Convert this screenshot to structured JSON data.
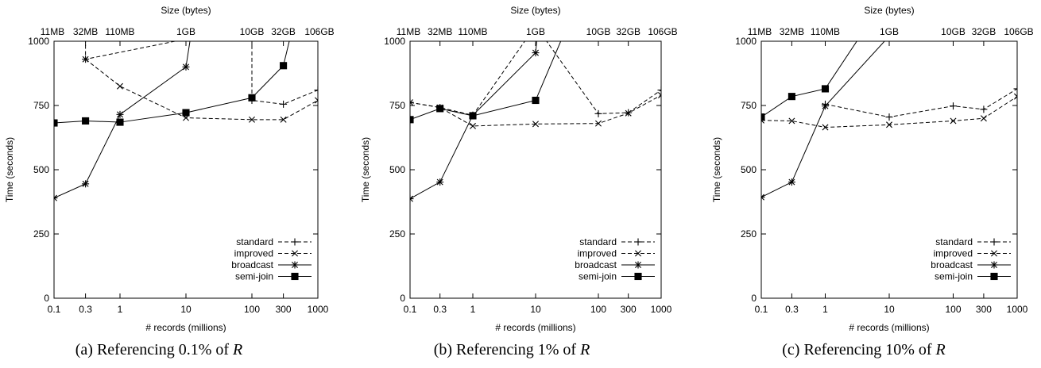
{
  "chart_data": [
    {
      "type": "line",
      "panel": "a",
      "caption": "(a) Referencing 0.1% of ",
      "caption_var": "R",
      "top_axis_title": "Size (bytes)",
      "ylabel": "Time (seconds)",
      "xlabel": "# records (millions)",
      "x_scale": "log",
      "xlim": [
        0.1,
        1000
      ],
      "ylim": [
        0,
        1000
      ],
      "x_ticks": [
        0.1,
        0.3,
        1,
        10,
        100,
        300,
        1000
      ],
      "x_tick_labels": [
        "0.1",
        "0.3",
        "1",
        "10",
        "100",
        "300",
        "1000"
      ],
      "y_ticks": [
        0,
        250,
        500,
        750,
        1000
      ],
      "y_tick_labels": [
        "0",
        "250",
        "500",
        "750",
        "1000"
      ],
      "top_ticks": [
        0.1,
        0.3,
        1,
        10,
        100,
        300,
        1000
      ],
      "top_tick_labels": [
        "11MB",
        "32MB",
        "110MB",
        "1GB",
        "10GB",
        "32GB",
        "106GB"
      ],
      "legend_position": "bottom-right",
      "series": [
        {
          "name": "standard",
          "style": "dashed",
          "marker": "plus",
          "x": [
            0.3,
            0.3,
            100,
            100,
            300,
            1000
          ],
          "y": [
            1060,
            930,
            1060,
            770,
            755,
            810
          ]
        },
        {
          "name": "improved",
          "style": "dashed",
          "marker": "cross",
          "x": [
            0.3,
            1,
            10,
            100,
            300,
            1000
          ],
          "y": [
            930,
            825,
            702,
            695,
            695,
            770
          ]
        },
        {
          "name": "broadcast",
          "style": "solid",
          "marker": "star",
          "x": [
            0.1,
            0.3,
            1,
            10,
            12.5
          ],
          "y": [
            390,
            445,
            715,
            900,
            1060
          ]
        },
        {
          "name": "semi-join",
          "style": "solid",
          "marker": "square",
          "x": [
            0.1,
            0.3,
            1,
            10,
            100,
            300,
            420
          ],
          "y": [
            682,
            690,
            685,
            722,
            780,
            905,
            1060
          ]
        }
      ]
    },
    {
      "type": "line",
      "panel": "b",
      "caption": "(b) Referencing 1% of ",
      "caption_var": "R",
      "top_axis_title": "Size (bytes)",
      "ylabel": "Time (seconds)",
      "xlabel": "# records (millions)",
      "x_scale": "log",
      "xlim": [
        0.1,
        1000
      ],
      "ylim": [
        0,
        1000
      ],
      "x_ticks": [
        0.1,
        0.3,
        1,
        10,
        100,
        300,
        1000
      ],
      "x_tick_labels": [
        "0.1",
        "0.3",
        "1",
        "10",
        "100",
        "300",
        "1000"
      ],
      "y_ticks": [
        0,
        250,
        500,
        750,
        1000
      ],
      "y_tick_labels": [
        "0",
        "250",
        "500",
        "750",
        "1000"
      ],
      "top_ticks": [
        0.1,
        0.3,
        1,
        10,
        100,
        300,
        1000
      ],
      "top_tick_labels": [
        "11MB",
        "32MB",
        "110MB",
        "1GB",
        "10GB",
        "32GB",
        "106GB"
      ],
      "legend_position": "bottom-right",
      "series": [
        {
          "name": "standard",
          "style": "dashed",
          "marker": "plus",
          "x": [
            0.1,
            0.3,
            1,
            10,
            100,
            300,
            1000
          ],
          "y": [
            762,
            742,
            712,
            1060,
            718,
            722,
            810
          ]
        },
        {
          "name": "improved",
          "style": "dashed",
          "marker": "cross",
          "x": [
            0.1,
            0.3,
            1,
            10,
            100,
            300,
            1000
          ],
          "y": [
            762,
            742,
            670,
            678,
            680,
            720,
            790
          ]
        },
        {
          "name": "broadcast",
          "style": "solid",
          "marker": "star",
          "x": [
            0.1,
            0.3,
            1,
            10,
            11
          ],
          "y": [
            387,
            452,
            712,
            955,
            1060
          ]
        },
        {
          "name": "semi-join",
          "style": "solid",
          "marker": "square",
          "x": [
            0.1,
            0.3,
            1,
            10,
            32
          ],
          "y": [
            695,
            738,
            710,
            770,
            1060
          ]
        }
      ]
    },
    {
      "type": "line",
      "panel": "c",
      "caption": "(c) Referencing 10% of ",
      "caption_var": "R",
      "top_axis_title": "Size (bytes)",
      "ylabel": "Time (seconds)",
      "xlabel": "# records (millions)",
      "x_scale": "log",
      "xlim": [
        0.1,
        1000
      ],
      "ylim": [
        0,
        1000
      ],
      "x_ticks": [
        0.1,
        0.3,
        1,
        10,
        100,
        300,
        1000
      ],
      "x_tick_labels": [
        "0.1",
        "0.3",
        "1",
        "10",
        "100",
        "300",
        "1000"
      ],
      "y_ticks": [
        0,
        250,
        500,
        750,
        1000
      ],
      "y_tick_labels": [
        "0",
        "250",
        "500",
        "750",
        "1000"
      ],
      "top_ticks": [
        0.1,
        0.3,
        1,
        10,
        100,
        300,
        1000
      ],
      "top_tick_labels": [
        "11MB",
        "32MB",
        "110MB",
        "1GB",
        "10GB",
        "32GB",
        "106GB"
      ],
      "legend_position": "bottom-right",
      "series": [
        {
          "name": "standard",
          "style": "dashed",
          "marker": "plus",
          "x": [
            1,
            10,
            100,
            300,
            1000
          ],
          "y": [
            755,
            705,
            748,
            735,
            815
          ]
        },
        {
          "name": "improved",
          "style": "dashed",
          "marker": "cross",
          "x": [
            0.1,
            0.3,
            1,
            10,
            100,
            300,
            1000
          ],
          "y": [
            692,
            690,
            665,
            675,
            690,
            700,
            785
          ]
        },
        {
          "name": "broadcast",
          "style": "solid",
          "marker": "star",
          "x": [
            0.1,
            0.3,
            1,
            10
          ],
          "y": [
            393,
            452,
            748,
            1020
          ]
        },
        {
          "name": "semi-join",
          "style": "solid",
          "marker": "square",
          "x": [
            0.1,
            0.3,
            1,
            4.5
          ],
          "y": [
            705,
            785,
            815,
            1060
          ]
        }
      ]
    }
  ]
}
